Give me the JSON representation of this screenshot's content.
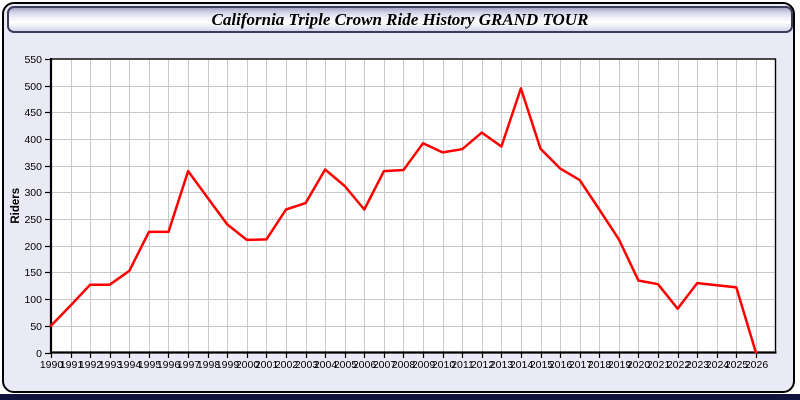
{
  "window": {
    "title": "California Triple Crown Ride History GRAND TOUR"
  },
  "colors": {
    "panel_bg": "#eaeaf6",
    "plot_bg": "#ffffff",
    "grid": "#c9c9c9",
    "axis": "#000000",
    "series_line": "#ff0000",
    "bottom_strip": "#12123f"
  },
  "chart_data": {
    "type": "line",
    "title": "California Triple Crown Ride History GRAND TOUR",
    "xlabel": "",
    "ylabel": "Riders",
    "grid": true,
    "legend_position": "none",
    "xlim": [
      1990,
      2027
    ],
    "ylim": [
      0,
      550
    ],
    "y_ticks": [
      0,
      50,
      100,
      150,
      200,
      250,
      300,
      350,
      400,
      450,
      500,
      550
    ],
    "x": [
      1990,
      1991,
      1992,
      1993,
      1994,
      1995,
      1996,
      1997,
      1998,
      1999,
      2000,
      2001,
      2002,
      2003,
      2004,
      2005,
      2006,
      2007,
      2008,
      2009,
      2010,
      2011,
      2012,
      2013,
      2014,
      2015,
      2016,
      2017,
      2018,
      2019,
      2020,
      2021,
      2022,
      2023,
      2024,
      2025,
      2026
    ],
    "series": [
      {
        "name": "Riders",
        "color": "#ff0000",
        "values": [
          50,
          88,
          127,
          127,
          153,
          226,
          226,
          340,
          290,
          240,
          211,
          212,
          268,
          280,
          343,
          312,
          268,
          340,
          342,
          392,
          375,
          381,
          412,
          386,
          495,
          382,
          345,
          323,
          268,
          212,
          135,
          128,
          82,
          130,
          126,
          122,
          0
        ]
      }
    ]
  }
}
